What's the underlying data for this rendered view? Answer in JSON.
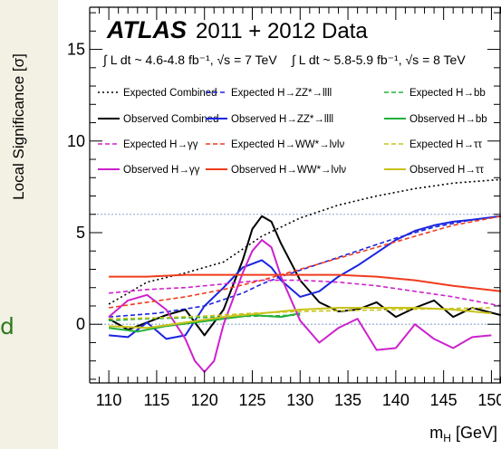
{
  "chart_data": {
    "type": "line",
    "header": {
      "brand": "ATLAS",
      "data_label": "2011 + 2012 Data",
      "lumi_7tev": "∫ L dt ~ 4.6-4.8 fb⁻¹, √s = 7 TeV",
      "lumi_8tev": "∫ L dt ~ 5.8-5.9 fb⁻¹, √s = 8 TeV"
    },
    "ylabel": "Local Significance [σ]",
    "xlabel": "m_H [GeV]",
    "xlim": [
      108,
      151
    ],
    "ylim": [
      -3.2,
      17.3
    ],
    "x_ticks": [
      "110",
      "115",
      "120",
      "125",
      "130",
      "135",
      "140",
      "145",
      "150"
    ],
    "y_ticks": [
      "0",
      "5",
      "10",
      "15"
    ],
    "reference_lines": [
      0,
      6
    ],
    "grid": false,
    "legend_placement": "top",
    "series": [
      {
        "name": "Expected Combined",
        "color": "#000000",
        "dash": "dotted",
        "x": [
          110,
          114,
          118,
          122,
          126,
          130,
          134,
          138,
          142,
          146,
          151
        ],
        "y": [
          1.1,
          2.3,
          2.8,
          3.4,
          4.8,
          5.8,
          6.5,
          7.0,
          7.4,
          7.7,
          7.9
        ]
      },
      {
        "name": "Observed Combined",
        "color": "#000000",
        "dash": "solid",
        "x": [
          110,
          112,
          114,
          116,
          118,
          120,
          122,
          124,
          125,
          126,
          127,
          128,
          130,
          132,
          134,
          136,
          138,
          140,
          142,
          144,
          146,
          148,
          151
        ],
        "y": [
          0.3,
          -0.3,
          0.1,
          0.5,
          0.8,
          -0.6,
          0.8,
          3.5,
          5.2,
          5.9,
          5.6,
          4.4,
          2.4,
          1.2,
          0.7,
          0.8,
          1.2,
          0.4,
          0.9,
          1.3,
          0.4,
          0.9,
          0.5
        ]
      },
      {
        "name": "Expected H→ZZ*→llll",
        "color": "#1a24e0",
        "dash": "dashed",
        "x": [
          110,
          115,
          120,
          124,
          126,
          128,
          132,
          136,
          140,
          144,
          148,
          151
        ],
        "y": [
          0.4,
          0.6,
          1.0,
          1.7,
          2.2,
          2.6,
          3.3,
          4.0,
          4.7,
          5.3,
          5.7,
          5.9
        ]
      },
      {
        "name": "Observed H→ZZ*→llll",
        "color": "#1a24e0",
        "dash": "solid",
        "x": [
          110,
          112,
          114,
          116,
          118,
          120,
          122,
          124,
          125,
          126,
          127,
          128,
          130,
          132,
          134,
          136,
          138,
          140,
          142,
          144,
          146,
          148,
          151
        ],
        "y": [
          -0.6,
          -0.7,
          0.1,
          -0.8,
          -0.6,
          1.0,
          2.0,
          3.1,
          3.3,
          3.5,
          3.1,
          2.4,
          1.5,
          1.8,
          2.6,
          3.2,
          3.9,
          4.6,
          5.1,
          5.4,
          5.6,
          5.7,
          5.9
        ]
      },
      {
        "name": "Expected H→bb",
        "color": "#22b03a",
        "dash": "dashed",
        "x": [
          110,
          114,
          118,
          122,
          126,
          130
        ],
        "y": [
          0.2,
          0.3,
          0.35,
          0.4,
          0.45,
          0.5
        ]
      },
      {
        "name": "Observed H→bb",
        "color": "#22b03a",
        "dash": "solid",
        "x": [
          110,
          113,
          116,
          119,
          122,
          125,
          128,
          130
        ],
        "y": [
          -0.2,
          -0.4,
          -0.1,
          0.1,
          0.3,
          0.5,
          0.4,
          0.6
        ]
      },
      {
        "name": "Expected H→γγ",
        "color": "#cc22cc",
        "dash": "dashed",
        "x": [
          110,
          114,
          118,
          122,
          126,
          130,
          134,
          138,
          142,
          146,
          151
        ],
        "y": [
          1.7,
          1.9,
          2.0,
          2.2,
          2.4,
          2.4,
          2.3,
          2.1,
          1.8,
          1.5,
          1.0
        ]
      },
      {
        "name": "Observed H→γγ",
        "color": "#cc22cc",
        "dash": "solid",
        "x": [
          110,
          112,
          114,
          116,
          118,
          119,
          120,
          121,
          122,
          124,
          125,
          126,
          127,
          128,
          130,
          132,
          134,
          136,
          138,
          140,
          142,
          144,
          146,
          148,
          150
        ],
        "y": [
          0.4,
          1.3,
          1.6,
          0.8,
          -0.8,
          -2.0,
          -2.6,
          -2.0,
          0.0,
          2.8,
          4.0,
          4.6,
          4.2,
          2.6,
          0.2,
          -1.0,
          -0.2,
          0.3,
          -1.4,
          -1.3,
          0.0,
          -0.8,
          -1.3,
          -0.7,
          -0.6
        ]
      },
      {
        "name": "Expected H→WW*→lνlν",
        "color": "#f03c1e",
        "dash": "dashed",
        "x": [
          110,
          114,
          118,
          122,
          126,
          130,
          134,
          138,
          142,
          146,
          151
        ],
        "y": [
          0.9,
          1.2,
          1.5,
          1.9,
          2.4,
          3.0,
          3.6,
          4.2,
          4.8,
          5.4,
          5.9
        ]
      },
      {
        "name": "Observed H→WW*→lνlν",
        "color": "#f03c1e",
        "dash": "solid",
        "x": [
          110,
          114,
          118,
          122,
          126,
          130,
          134,
          138,
          142,
          146,
          151
        ],
        "y": [
          2.6,
          2.6,
          2.7,
          2.7,
          2.7,
          2.7,
          2.7,
          2.6,
          2.4,
          2.1,
          1.8
        ]
      },
      {
        "name": "Expected H→ττ",
        "color": "#c8c21a",
        "dash": "dashed",
        "x": [
          110,
          115,
          120,
          125,
          130,
          135,
          140,
          145,
          150
        ],
        "y": [
          0.3,
          0.35,
          0.45,
          0.6,
          0.7,
          0.75,
          0.8,
          0.85,
          0.9
        ]
      },
      {
        "name": "Observed H→ττ",
        "color": "#c8c21a",
        "dash": "solid",
        "x": [
          110,
          114,
          118,
          122,
          126,
          130,
          134,
          138,
          142,
          146,
          150
        ],
        "y": [
          -0.1,
          -0.2,
          0.1,
          0.4,
          0.6,
          0.8,
          0.9,
          0.9,
          0.9,
          0.8,
          0.6
        ]
      }
    ]
  },
  "side_text": "d"
}
